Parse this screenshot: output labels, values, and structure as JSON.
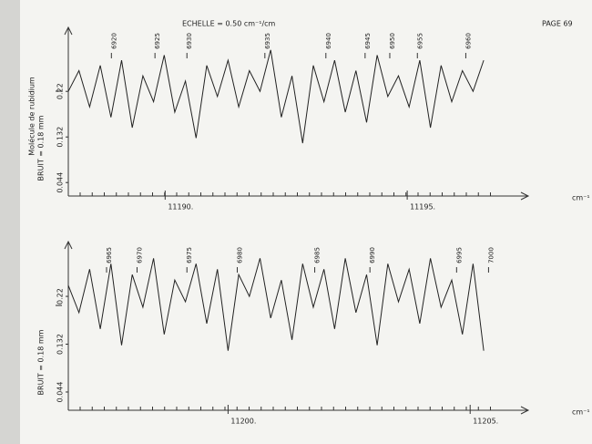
{
  "header": {
    "scale": "ECHELLE = 0.50 cm⁻¹/cm",
    "page": "PAGE 69"
  },
  "chart_data": [
    {
      "type": "line",
      "xlabel": "cm⁻¹",
      "ylabel": "I",
      "noise": "BRUIT = 0.18 mm",
      "molecule": "Molécule de rubidium",
      "color": "#222222",
      "xlim": [
        11188,
        11197.5
      ],
      "ylim": [
        0.018,
        0.326
      ],
      "xticks": [
        {
          "value": 11190,
          "label": "11190."
        },
        {
          "value": 11195,
          "label": "11195."
        }
      ],
      "yticks": [
        0.044,
        0.132,
        0.22
      ],
      "x": [
        11188.0,
        11188.22,
        11188.44,
        11188.66,
        11188.88,
        11189.1,
        11189.32,
        11189.54,
        11189.76,
        11189.98,
        11190.2,
        11190.42,
        11190.64,
        11190.86,
        11191.08,
        11191.3,
        11191.52,
        11191.74,
        11191.96,
        11192.18,
        11192.4,
        11192.62,
        11192.84,
        11193.06,
        11193.28,
        11193.5,
        11193.72,
        11193.94,
        11194.16,
        11194.38,
        11194.6,
        11194.82,
        11195.04,
        11195.26,
        11195.48,
        11195.7,
        11195.92,
        11196.14,
        11196.36,
        11196.58
      ],
      "values": [
        0.22,
        0.26,
        0.19,
        0.27,
        0.17,
        0.28,
        0.15,
        0.25,
        0.2,
        0.29,
        0.18,
        0.24,
        0.13,
        0.27,
        0.21,
        0.28,
        0.19,
        0.26,
        0.22,
        0.3,
        0.17,
        0.25,
        0.12,
        0.27,
        0.2,
        0.28,
        0.18,
        0.26,
        0.16,
        0.29,
        0.21,
        0.25,
        0.19,
        0.28,
        0.15,
        0.27,
        0.2,
        0.26,
        0.22,
        0.28
      ],
      "line_labels": [
        {
          "x": 11188.89,
          "label": "6920"
        },
        {
          "x": 11189.79,
          "label": "6925"
        },
        {
          "x": 11190.45,
          "label": "6930"
        },
        {
          "x": 11192.06,
          "label": "6935"
        },
        {
          "x": 11193.32,
          "label": "6940"
        },
        {
          "x": 11194.13,
          "label": "6945"
        },
        {
          "x": 11194.64,
          "label": "6950"
        },
        {
          "x": 11195.21,
          "label": "6955"
        },
        {
          "x": 11196.21,
          "label": "6960"
        }
      ]
    },
    {
      "type": "line",
      "xlabel": "cm⁻¹",
      "ylabel": "I",
      "noise": "BRUIT = 0.18 mm",
      "color": "#222222",
      "xlim": [
        11196.7,
        11206.2
      ],
      "ylim": [
        0.0104,
        0.304
      ],
      "xticks": [
        {
          "value": 11200,
          "label": "11200."
        },
        {
          "value": 11205,
          "label": "11205."
        }
      ],
      "yticks": [
        0.044,
        0.132,
        0.22
      ],
      "x": [
        11196.7,
        11196.92,
        11197.14,
        11197.36,
        11197.58,
        11197.8,
        11198.02,
        11198.24,
        11198.46,
        11198.68,
        11198.9,
        11199.12,
        11199.34,
        11199.56,
        11199.78,
        11200.0,
        11200.22,
        11200.44,
        11200.66,
        11200.88,
        11201.1,
        11201.32,
        11201.54,
        11201.76,
        11201.98,
        11202.2,
        11202.42,
        11202.64,
        11202.86,
        11203.08,
        11203.3,
        11203.52,
        11203.74,
        11203.96,
        11204.18,
        11204.4,
        11204.62,
        11204.84,
        11205.06,
        11205.28
      ],
      "values": [
        0.24,
        0.19,
        0.27,
        0.16,
        0.28,
        0.13,
        0.26,
        0.2,
        0.29,
        0.15,
        0.25,
        0.21,
        0.28,
        0.17,
        0.27,
        0.12,
        0.26,
        0.22,
        0.29,
        0.18,
        0.25,
        0.14,
        0.28,
        0.2,
        0.27,
        0.16,
        0.29,
        0.19,
        0.26,
        0.13,
        0.28,
        0.21,
        0.27,
        0.17,
        0.29,
        0.2,
        0.25,
        0.15,
        0.28,
        0.12
      ],
      "line_labels": [
        {
          "x": 11197.49,
          "label": "6965"
        },
        {
          "x": 11198.12,
          "label": "6970"
        },
        {
          "x": 11199.15,
          "label": "6975"
        },
        {
          "x": 11200.19,
          "label": "6980"
        },
        {
          "x": 11201.79,
          "label": "6985"
        },
        {
          "x": 11202.93,
          "label": "6990"
        },
        {
          "x": 11204.72,
          "label": "6995"
        },
        {
          "x": 11205.38,
          "label": "7000"
        }
      ]
    }
  ]
}
